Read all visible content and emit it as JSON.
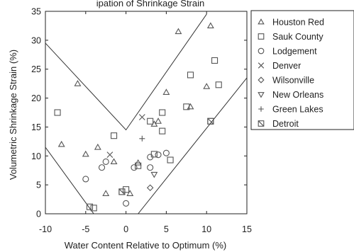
{
  "chart_data": {
    "type": "scatter",
    "title_fragment": "ipation of Shrinkage Strain",
    "xlabel": "Water Content Relative to Optimum (%)",
    "ylabel": "Volumetric Shrinkage Strain (%)",
    "xlim": [
      -10,
      15
    ],
    "ylim": [
      0,
      35
    ],
    "xticks": [
      -10,
      -5,
      0,
      5,
      10,
      15
    ],
    "yticks": [
      0,
      5,
      10,
      15,
      20,
      25,
      30,
      35
    ],
    "grid": false,
    "legend_position": "right",
    "envelope_upper": [
      [
        -10,
        29.5
      ],
      [
        0,
        14.5
      ],
      [
        10,
        34.5
      ]
    ],
    "envelope_lower": [
      [
        -10,
        11.5
      ],
      [
        -4,
        0
      ],
      [
        1.5,
        0
      ],
      [
        15,
        23.5
      ]
    ],
    "series": [
      {
        "name": "Houston Red",
        "marker": "triangle-up",
        "points": [
          [
            -8,
            12
          ],
          [
            -6,
            22.5
          ],
          [
            -5,
            10.3
          ],
          [
            -3.5,
            11.5
          ],
          [
            -2.5,
            3.5
          ],
          [
            -1.5,
            9
          ],
          [
            0.5,
            3.5
          ],
          [
            1.5,
            8.8
          ],
          [
            3.5,
            15.5
          ],
          [
            4,
            16
          ],
          [
            5,
            21
          ],
          [
            6.5,
            31.5
          ],
          [
            8,
            18.5
          ],
          [
            10,
            22
          ],
          [
            10.5,
            32.5
          ]
        ]
      },
      {
        "name": "Sauk County",
        "marker": "square",
        "points": [
          [
            -8.5,
            17.5
          ],
          [
            -4.5,
            1.2
          ],
          [
            -4,
            1
          ],
          [
            -1.5,
            13.5
          ],
          [
            -0.5,
            3.8
          ],
          [
            0,
            4.2
          ],
          [
            1.5,
            8.3
          ],
          [
            3,
            16
          ],
          [
            3.5,
            10.3
          ],
          [
            4.5,
            17.5
          ],
          [
            4.5,
            14.3
          ],
          [
            5.5,
            9.3
          ],
          [
            7.5,
            18.5
          ],
          [
            8,
            24
          ],
          [
            10.5,
            16
          ],
          [
            11,
            26.5
          ],
          [
            11.5,
            22.3
          ]
        ]
      },
      {
        "name": "Lodgement",
        "marker": "circle",
        "points": [
          [
            -5,
            6
          ],
          [
            -3,
            8
          ],
          [
            -2.5,
            9
          ],
          [
            0,
            1.8
          ],
          [
            1,
            8
          ],
          [
            3,
            8
          ],
          [
            3,
            9.8
          ],
          [
            4,
            10.2
          ],
          [
            5,
            10.5
          ]
        ]
      },
      {
        "name": "Denver",
        "marker": "x",
        "points": [
          [
            -2,
            10.2
          ],
          [
            2,
            16.7
          ]
        ]
      },
      {
        "name": "Wilsonville",
        "marker": "diamond",
        "points": [
          [
            3,
            4.5
          ]
        ]
      },
      {
        "name": "New Orleans",
        "marker": "triangle-down",
        "points": [
          [
            3.5,
            6.8
          ]
        ]
      },
      {
        "name": "Green Lakes",
        "marker": "plus",
        "points": [
          [
            2,
            13
          ]
        ]
      },
      {
        "name": "Detroit",
        "marker": "box-slash",
        "points": [
          [
            -0.5,
            3.8
          ],
          [
            10.5,
            16
          ]
        ]
      }
    ]
  }
}
